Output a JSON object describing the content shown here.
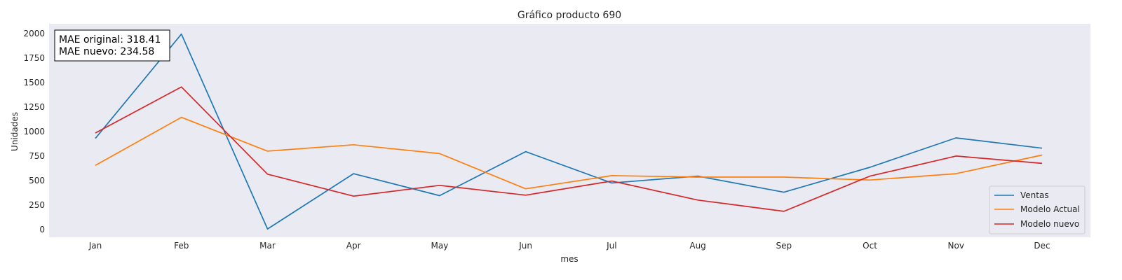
{
  "chart_data": {
    "type": "line",
    "title": "Gráfico producto 690",
    "xlabel": "mes",
    "ylabel": "Unidades",
    "categories": [
      "Jan",
      "Feb",
      "Mar",
      "Apr",
      "May",
      "Jun",
      "Jul",
      "Aug",
      "Sep",
      "Oct",
      "Nov",
      "Dec"
    ],
    "ylim": [
      -80,
      2100
    ],
    "yticks": [
      0,
      250,
      500,
      750,
      1000,
      1250,
      1500,
      1750,
      2000
    ],
    "grid": false,
    "legend_position": "lower-right",
    "series": [
      {
        "name": "Ventas",
        "color": "#1f77b4",
        "values": [
          930,
          1995,
          5,
          570,
          345,
          795,
          475,
          545,
          380,
          635,
          935,
          830
        ]
      },
      {
        "name": "Modelo Actual",
        "color": "#ff7f0e",
        "values": [
          655,
          1145,
          800,
          865,
          775,
          415,
          550,
          535,
          535,
          505,
          570,
          760
        ]
      },
      {
        "name": "Modelo nuevo",
        "color": "#d62728",
        "values": [
          985,
          1455,
          565,
          340,
          450,
          350,
          495,
          300,
          185,
          545,
          750,
          675
        ]
      }
    ],
    "annotation": {
      "lines": [
        "MAE original: 318.41",
        "MAE nuevo: 234.58"
      ]
    }
  }
}
